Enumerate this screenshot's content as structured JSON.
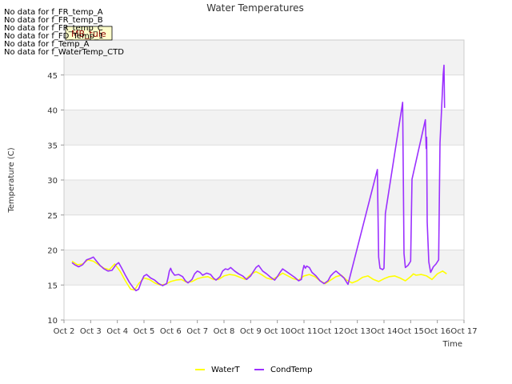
{
  "chart_data": {
    "type": "line",
    "title": "Water Temperatures",
    "xlabel": "Time",
    "ylabel": "Temperature (C)",
    "x_ticks": [
      "Oct 2",
      "Oct 3",
      "Oct 4",
      "Oct 5",
      "Oct 6",
      "Oct 7",
      "Oct 8",
      "Oct 9",
      "Oct 10",
      "Oct 11",
      "Oct 12",
      "Oct 13",
      "Oct 14",
      "Oct 15",
      "Oct 16",
      "Oct 17"
    ],
    "xlim": [
      2,
      17
    ],
    "y_ticks": [
      10,
      15,
      20,
      25,
      30,
      35,
      40,
      45
    ],
    "ylim": [
      10,
      50
    ],
    "grid": "horizontal bands",
    "legend_position": "bottom-center",
    "no_data_notes": [
      "No data for f_FR_temp_A",
      "No data for f_FR_temp_B",
      "No data for f_FR_temp_C",
      "No data for f_FD_Temp_1",
      "No data for f_Temp_A",
      "No data for f_WaterTemp_CTD"
    ],
    "tooltip_label": "MB_tule",
    "series": [
      {
        "name": "WaterT",
        "color": "#ffff00",
        "points": [
          [
            2.3,
            18.4
          ],
          [
            2.5,
            17.9
          ],
          [
            2.7,
            18.0
          ],
          [
            2.9,
            18.6
          ],
          [
            3.1,
            18.4
          ],
          [
            3.3,
            17.9
          ],
          [
            3.5,
            17.4
          ],
          [
            3.7,
            17.2
          ],
          [
            3.9,
            18.0
          ],
          [
            4.1,
            17.0
          ],
          [
            4.3,
            15.6
          ],
          [
            4.5,
            14.4
          ],
          [
            4.65,
            14.3
          ],
          [
            4.8,
            15.2
          ],
          [
            5.0,
            16.0
          ],
          [
            5.2,
            15.8
          ],
          [
            5.4,
            15.3
          ],
          [
            5.6,
            15.0
          ],
          [
            5.8,
            15.1
          ],
          [
            6.0,
            15.5
          ],
          [
            6.2,
            15.7
          ],
          [
            6.4,
            15.8
          ],
          [
            6.6,
            15.4
          ],
          [
            6.8,
            15.5
          ],
          [
            7.0,
            15.9
          ],
          [
            7.2,
            16.1
          ],
          [
            7.4,
            16.2
          ],
          [
            7.6,
            15.8
          ],
          [
            7.8,
            15.8
          ],
          [
            8.0,
            16.3
          ],
          [
            8.2,
            16.5
          ],
          [
            8.4,
            16.4
          ],
          [
            8.6,
            16.1
          ],
          [
            8.8,
            15.8
          ],
          [
            9.0,
            16.5
          ],
          [
            9.2,
            16.9
          ],
          [
            9.4,
            16.5
          ],
          [
            9.6,
            16.0
          ],
          [
            9.8,
            15.8
          ],
          [
            10.0,
            16.2
          ],
          [
            10.2,
            16.7
          ],
          [
            10.4,
            16.3
          ],
          [
            10.6,
            15.9
          ],
          [
            10.8,
            15.7
          ],
          [
            11.0,
            16.3
          ],
          [
            11.2,
            16.5
          ],
          [
            11.4,
            16.2
          ],
          [
            11.6,
            15.6
          ],
          [
            11.8,
            15.2
          ],
          [
            12.0,
            15.7
          ],
          [
            12.2,
            16.2
          ],
          [
            12.4,
            16.4
          ],
          [
            12.6,
            15.7
          ],
          [
            12.8,
            15.3
          ],
          [
            13.0,
            15.6
          ],
          [
            13.2,
            16.1
          ],
          [
            13.4,
            16.3
          ],
          [
            13.6,
            15.8
          ],
          [
            13.8,
            15.5
          ],
          [
            14.0,
            15.9
          ],
          [
            14.2,
            16.2
          ],
          [
            14.4,
            16.3
          ],
          [
            14.6,
            16.0
          ],
          [
            14.8,
            15.6
          ],
          [
            15.0,
            16.2
          ],
          [
            15.1,
            16.6
          ],
          [
            15.2,
            16.4
          ],
          [
            15.4,
            16.5
          ],
          [
            15.6,
            16.3
          ],
          [
            15.8,
            15.8
          ],
          [
            16.0,
            16.6
          ],
          [
            16.2,
            17.0
          ],
          [
            16.35,
            16.6
          ]
        ]
      },
      {
        "name": "CondTemp",
        "color": "#9b30ff",
        "points": [
          [
            2.3,
            18.2
          ],
          [
            2.4,
            17.9
          ],
          [
            2.55,
            17.6
          ],
          [
            2.7,
            17.9
          ],
          [
            2.85,
            18.6
          ],
          [
            3.0,
            18.8
          ],
          [
            3.1,
            19.0
          ],
          [
            3.2,
            18.5
          ],
          [
            3.35,
            17.8
          ],
          [
            3.5,
            17.3
          ],
          [
            3.65,
            17.0
          ],
          [
            3.8,
            17.1
          ],
          [
            3.95,
            17.9
          ],
          [
            4.05,
            18.2
          ],
          [
            4.15,
            17.5
          ],
          [
            4.3,
            16.4
          ],
          [
            4.45,
            15.4
          ],
          [
            4.6,
            14.6
          ],
          [
            4.7,
            14.2
          ],
          [
            4.8,
            14.4
          ],
          [
            4.9,
            15.5
          ],
          [
            5.0,
            16.3
          ],
          [
            5.1,
            16.5
          ],
          [
            5.25,
            16.0
          ],
          [
            5.4,
            15.7
          ],
          [
            5.55,
            15.2
          ],
          [
            5.7,
            14.9
          ],
          [
            5.85,
            15.2
          ],
          [
            5.9,
            16.0
          ],
          [
            5.95,
            17.0
          ],
          [
            6.0,
            17.4
          ],
          [
            6.05,
            16.9
          ],
          [
            6.15,
            16.4
          ],
          [
            6.3,
            16.5
          ],
          [
            6.45,
            16.2
          ],
          [
            6.55,
            15.6
          ],
          [
            6.65,
            15.3
          ],
          [
            6.8,
            15.8
          ],
          [
            6.9,
            16.6
          ],
          [
            7.0,
            17.0
          ],
          [
            7.1,
            16.8
          ],
          [
            7.2,
            16.4
          ],
          [
            7.35,
            16.7
          ],
          [
            7.5,
            16.5
          ],
          [
            7.6,
            16.0
          ],
          [
            7.7,
            15.7
          ],
          [
            7.85,
            16.2
          ],
          [
            7.95,
            17.0
          ],
          [
            8.05,
            17.3
          ],
          [
            8.15,
            17.2
          ],
          [
            8.25,
            17.5
          ],
          [
            8.4,
            17.0
          ],
          [
            8.55,
            16.6
          ],
          [
            8.7,
            16.3
          ],
          [
            8.85,
            15.8
          ],
          [
            9.0,
            16.3
          ],
          [
            9.1,
            16.9
          ],
          [
            9.2,
            17.5
          ],
          [
            9.3,
            17.8
          ],
          [
            9.45,
            17.0
          ],
          [
            9.6,
            16.6
          ],
          [
            9.75,
            16.1
          ],
          [
            9.9,
            15.7
          ],
          [
            10.0,
            16.2
          ],
          [
            10.1,
            16.8
          ],
          [
            10.2,
            17.3
          ],
          [
            10.35,
            16.9
          ],
          [
            10.5,
            16.5
          ],
          [
            10.65,
            16.1
          ],
          [
            10.8,
            15.6
          ],
          [
            10.9,
            15.8
          ],
          [
            10.95,
            17.0
          ],
          [
            11.0,
            17.8
          ],
          [
            11.05,
            17.4
          ],
          [
            11.1,
            17.7
          ],
          [
            11.2,
            17.5
          ],
          [
            11.3,
            16.8
          ],
          [
            11.45,
            16.3
          ],
          [
            11.6,
            15.6
          ],
          [
            11.75,
            15.2
          ],
          [
            11.9,
            15.6
          ],
          [
            12.0,
            16.3
          ],
          [
            12.1,
            16.7
          ],
          [
            12.2,
            17.0
          ],
          [
            12.35,
            16.5
          ],
          [
            12.5,
            16.0
          ],
          [
            12.6,
            15.4
          ],
          [
            12.65,
            15.1
          ],
          [
            13.75,
            31.5
          ],
          [
            13.8,
            19.0
          ],
          [
            13.85,
            17.4
          ],
          [
            13.95,
            17.2
          ],
          [
            14.0,
            17.4
          ],
          [
            14.05,
            25.2
          ],
          [
            14.7,
            41.1
          ],
          [
            14.75,
            19.5
          ],
          [
            14.8,
            17.5
          ],
          [
            14.9,
            17.8
          ],
          [
            15.0,
            18.4
          ],
          [
            15.05,
            30.1
          ],
          [
            15.55,
            38.6
          ],
          [
            15.58,
            34.5
          ],
          [
            15.6,
            36.1
          ],
          [
            15.62,
            24.0
          ],
          [
            15.68,
            18.3
          ],
          [
            15.75,
            16.8
          ],
          [
            15.85,
            17.6
          ],
          [
            15.95,
            18.0
          ],
          [
            16.05,
            18.6
          ],
          [
            16.1,
            35.3
          ],
          [
            16.22,
            45.1
          ],
          [
            16.25,
            46.4
          ],
          [
            16.27,
            40.3
          ]
        ]
      }
    ]
  }
}
